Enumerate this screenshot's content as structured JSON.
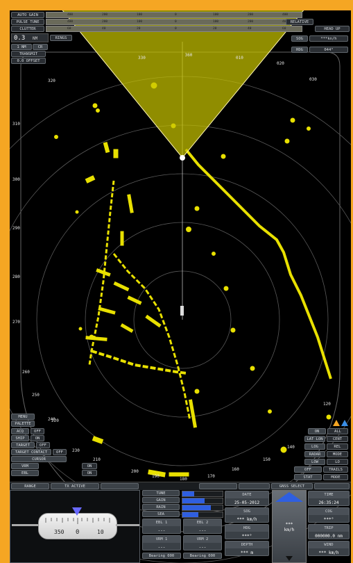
{
  "gain_controls": {
    "rows": [
      {
        "label": "AUTO GAIN",
        "ticks": [
          "400",
          "200",
          "100",
          "0",
          "100",
          "200",
          "400"
        ]
      },
      {
        "label": "PULSE TUNE",
        "ticks": [
          "400",
          "200",
          "100",
          "0",
          "100",
          "200",
          "400"
        ]
      },
      {
        "label": "CLUTTER",
        "ticks": [
          "60",
          "40",
          "20",
          "0",
          "20",
          "40",
          "60"
        ]
      }
    ]
  },
  "range": {
    "value": "0.3",
    "unit": "NM",
    "rings_label": "RINGS"
  },
  "left_toggles": [
    "1 NM",
    "CR",
    "TRANSMIT",
    "0.0 OFFSET"
  ],
  "top_right": {
    "mode_label": "RELATIVE",
    "heading_mode": "HEAD UP",
    "sog_label": "SOG",
    "sog_value": "***kn/h",
    "hdg_label": "HDG",
    "hdg_value": "044°"
  },
  "bearings": [
    "360",
    "010",
    "020",
    "030",
    "330",
    "320",
    "310",
    "300",
    "290",
    "280",
    "270",
    "260",
    "250",
    "240",
    "230",
    "220",
    "210",
    "200",
    "190",
    "180",
    "170",
    "160",
    "150",
    "140",
    "130",
    "120"
  ],
  "lower_left_buttons": [
    {
      "label": "MENU"
    },
    {
      "label": "PALETTE"
    },
    {
      "label": "ACQ",
      "value": "OFF"
    },
    {
      "label": "SHIP",
      "value": "ON"
    },
    {
      "label": "TARGET",
      "value": "OFF"
    },
    {
      "label": "TARGET CONTACT",
      "value": "OFF"
    },
    {
      "label": "CURSOR"
    },
    {
      "label": "VRM",
      "value": "ON"
    },
    {
      "label": "EBL",
      "value": "ON"
    }
  ],
  "lower_right_buttons": [
    {
      "label": "ON",
      "value": "ALL"
    },
    {
      "label": "LAT LON",
      "value": "CENT"
    },
    {
      "label": "LOG",
      "value": "REL"
    },
    {
      "label": "RADAR",
      "value": "MODE"
    },
    {
      "label": "LOW",
      "value": "LO"
    },
    {
      "label": "OFF",
      "value": "TRAILS"
    },
    {
      "label": "STAT",
      "value": "MODE"
    }
  ],
  "status_bar": [
    "RANGE",
    "TX ACTIVE",
    "",
    "",
    "",
    "GNSS SELECT",
    ""
  ],
  "compass": {
    "labels": [
      "350",
      "0",
      "10"
    ],
    "heading": "360°"
  },
  "gauge_buttons": [
    "TUNE",
    "GAIN",
    "RAIN",
    "SEA",
    "IR",
    "STC"
  ],
  "vrm_ebl": {
    "ebl1": {
      "label": "EBL 1",
      "value": "---"
    },
    "ebl2": {
      "label": "EBL 2",
      "value": "---"
    },
    "vrm1": {
      "label": "VRM 1",
      "value": "---"
    },
    "vrm2": {
      "label": "VRM 2",
      "value": "---"
    },
    "bottom1": "Bearing 000",
    "bottom2": "Bearing 000"
  },
  "nav_info": {
    "date": {
      "label": "DATE",
      "value": "25-05-2012"
    },
    "time": {
      "label": "TIME",
      "value": "26:35:24"
    },
    "sog": {
      "label": "SOG",
      "value": "*** km/h"
    },
    "cog": {
      "label": "COG",
      "value": "***°"
    },
    "hdg": {
      "label": "HDG",
      "value": "***°"
    },
    "trip": {
      "label": "TRIP",
      "value": "000000.0 nm"
    },
    "depth": {
      "label": "DEPTH",
      "value": "*** m"
    },
    "wind": {
      "label": "WIND",
      "value": "*** km/h"
    }
  },
  "speed_box": {
    "value": "***",
    "unit": "km/h"
  },
  "colors": {
    "frame": "#f5a623",
    "echo": "#e8e000",
    "cone": "#c8c400",
    "screen": "#000000",
    "panel": "#2b2f34"
  }
}
